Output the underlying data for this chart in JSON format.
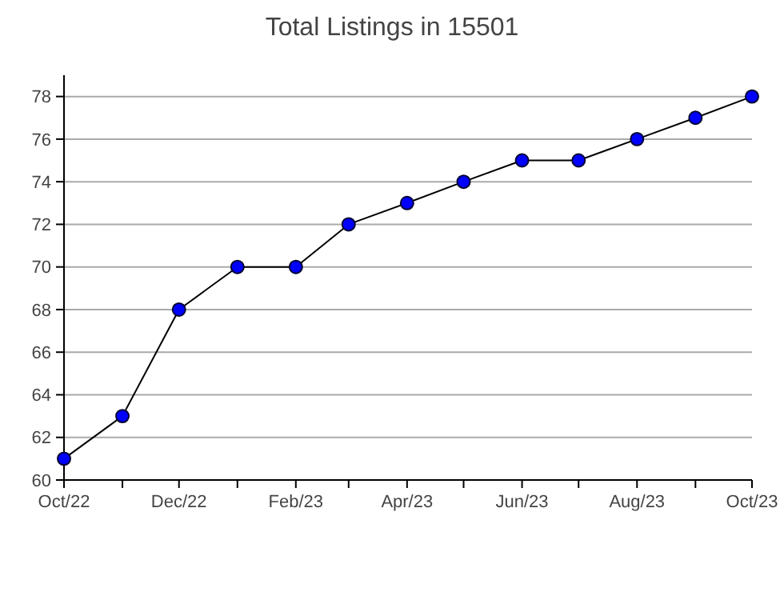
{
  "chart_data": {
    "type": "line",
    "title": "Total Listings in 15501",
    "x": [
      "2022-10",
      "2022-11",
      "2022-12",
      "2023-01",
      "2023-02",
      "2023-03",
      "2023-04",
      "2023-05",
      "2023-06",
      "2023-07",
      "2023-08",
      "2023-09",
      "2023-10"
    ],
    "series": [
      {
        "color": "#0000ff",
        "values": [
          61,
          63,
          68,
          70,
          70,
          72,
          73,
          74,
          75,
          75,
          76,
          77,
          78
        ]
      }
    ],
    "xlim": [
      "2022-10",
      "2023-10"
    ],
    "xticks": [
      {
        "value": "2022-10",
        "label": "Oct/22"
      },
      {
        "value": "2022-11",
        "label": null
      },
      {
        "value": "2022-12",
        "label": "Dec/22"
      },
      {
        "value": "2023-01",
        "label": null
      },
      {
        "value": "2023-02",
        "label": "Feb/23"
      },
      {
        "value": "2023-03",
        "label": null
      },
      {
        "value": "2023-04",
        "label": "Apr/23"
      },
      {
        "value": "2023-05",
        "label": null
      },
      {
        "value": "2023-06",
        "label": "Jun/23"
      },
      {
        "value": "2023-07",
        "label": null
      },
      {
        "value": "2023-08",
        "label": "Aug/23"
      },
      {
        "value": "2023-09",
        "label": null
      },
      {
        "value": "2023-10",
        "label": "Oct/23"
      }
    ],
    "ylim": [
      60,
      79
    ],
    "yticks": [
      60,
      62,
      64,
      66,
      68,
      70,
      72,
      74,
      76,
      78
    ],
    "grid": "y",
    "marker": "circle",
    "line_style": "solid"
  }
}
